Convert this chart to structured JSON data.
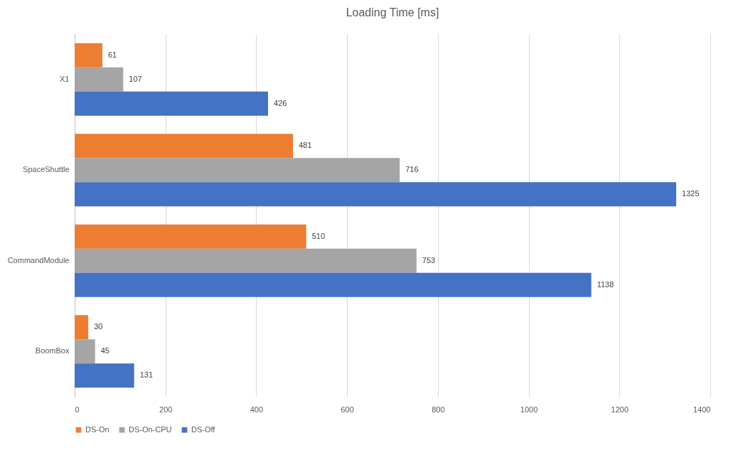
{
  "chart_data": {
    "type": "bar",
    "orientation": "horizontal",
    "title": "Loading Time [ms]",
    "categories": [
      "X1",
      "SpaceShuttle",
      "CommandModule",
      "BoomBox"
    ],
    "series": [
      {
        "name": "DS-On",
        "color": "#ed7d31",
        "values": [
          61,
          481,
          510,
          30
        ]
      },
      {
        "name": "DS-On-CPU",
        "color": "#a5a5a5",
        "values": [
          107,
          716,
          753,
          45
        ]
      },
      {
        "name": "DS-Off",
        "color": "#4472c4",
        "values": [
          426,
          1325,
          1138,
          131
        ]
      }
    ],
    "xlim": [
      0,
      1400
    ],
    "xticks": [
      0,
      200,
      400,
      600,
      800,
      1000,
      1200,
      1400
    ],
    "grid": "x",
    "legend": "bottom",
    "data_labels": true
  }
}
